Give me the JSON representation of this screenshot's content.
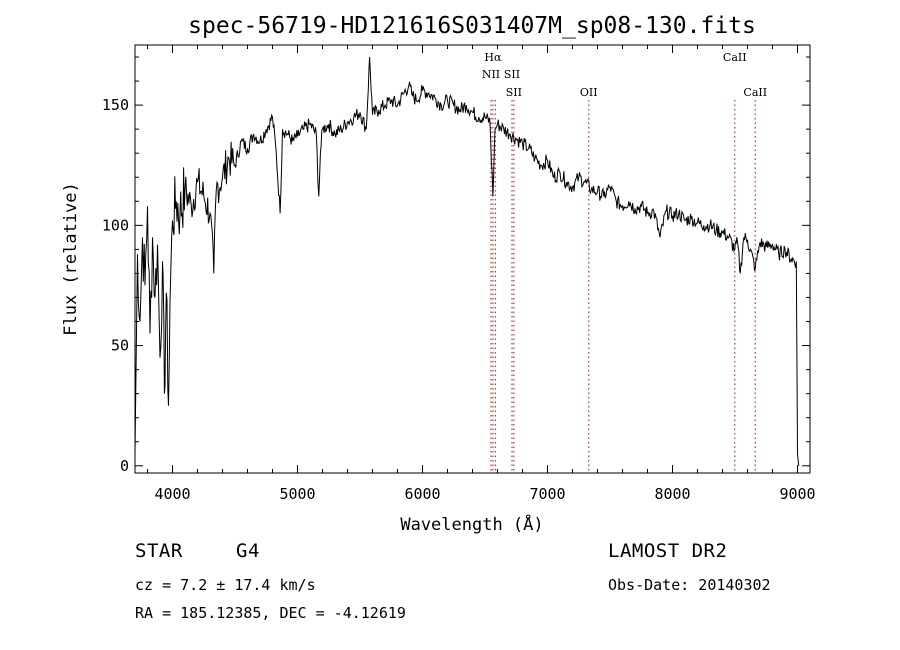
{
  "chart_data": {
    "type": "line",
    "title": "spec-56719-HD121616S031407M_sp08-130.fits",
    "xlabel": "Wavelength (Å)",
    "ylabel": "Flux (relative)",
    "xlim": [
      3700,
      9100
    ],
    "ylim": [
      -3,
      175
    ],
    "xticks": [
      4000,
      5000,
      6000,
      7000,
      8000,
      9000
    ],
    "xtick_labels": [
      "4000",
      "5000",
      "6000",
      "7000",
      "8000",
      "9000"
    ],
    "yticks": [
      0,
      50,
      100,
      150
    ],
    "ytick_labels": [
      "0",
      "50",
      "100",
      "150"
    ],
    "grid": false,
    "series": [
      {
        "name": "spectrum",
        "x": [
          3700,
          3720,
          3740,
          3760,
          3780,
          3800,
          3820,
          3840,
          3860,
          3880,
          3900,
          3920,
          3935,
          3950,
          3968,
          3980,
          4000,
          4030,
          4060,
          4100,
          4150,
          4200,
          4250,
          4300,
          4330,
          4350,
          4400,
          4450,
          4500,
          4550,
          4600,
          4650,
          4700,
          4750,
          4800,
          4830,
          4861,
          4880,
          4920,
          4960,
          5000,
          5050,
          5100,
          5150,
          5170,
          5183,
          5200,
          5250,
          5300,
          5350,
          5400,
          5450,
          5500,
          5550,
          5577,
          5600,
          5650,
          5700,
          5750,
          5800,
          5850,
          5890,
          5920,
          5950,
          6000,
          6050,
          6100,
          6150,
          6200,
          6250,
          6300,
          6350,
          6400,
          6450,
          6500,
          6540,
          6563,
          6580,
          6600,
          6650,
          6700,
          6750,
          6800,
          6850,
          6900,
          6950,
          7000,
          7050,
          7100,
          7150,
          7200,
          7250,
          7300,
          7350,
          7400,
          7450,
          7500,
          7550,
          7600,
          7650,
          7700,
          7750,
          7800,
          7850,
          7900,
          7950,
          8000,
          8050,
          8100,
          8150,
          8200,
          8250,
          8300,
          8350,
          8400,
          8450,
          8498,
          8520,
          8542,
          8570,
          8600,
          8662,
          8700,
          8750,
          8800,
          8850,
          8900,
          8950,
          8990,
          9000,
          9010
        ],
        "values": [
          5,
          88,
          60,
          95,
          75,
          108,
          55,
          95,
          70,
          92,
          45,
          85,
          30,
          72,
          25,
          68,
          102,
          110,
          105,
          115,
          108,
          118,
          112,
          105,
          80,
          115,
          120,
          128,
          125,
          135,
          132,
          138,
          135,
          140,
          145,
          130,
          105,
          140,
          138,
          135,
          137,
          140,
          142,
          138,
          112,
          130,
          140,
          142,
          138,
          140,
          143,
          145,
          147,
          140,
          170,
          146,
          148,
          150,
          152,
          150,
          155,
          158,
          154,
          152,
          156,
          155,
          153,
          150,
          152,
          150,
          148,
          150,
          147,
          145,
          145,
          143,
          112,
          140,
          142,
          140,
          138,
          136,
          134,
          132,
          128,
          125,
          127,
          120,
          122,
          118,
          116,
          120,
          118,
          115,
          114,
          112,
          116,
          110,
          108,
          110,
          107,
          108,
          105,
          106,
          95,
          106,
          104,
          105,
          102,
          103,
          101,
          100,
          100,
          98,
          97,
          95,
          90,
          93,
          80,
          95,
          94,
          82,
          93,
          91,
          92,
          88,
          90,
          86,
          85,
          5,
          0
        ]
      }
    ],
    "emission_lines": [
      {
        "x": 6563,
        "label": "Hα",
        "tier": 0
      },
      {
        "x": 6548,
        "label": "NII",
        "tier": 1
      },
      {
        "x": 6583,
        "label": "",
        "tier": -1
      },
      {
        "x": 6716,
        "label": "SII",
        "tier": 1
      },
      {
        "x": 6731,
        "label": "SII",
        "tier": 2
      },
      {
        "x": 7330,
        "label": "OII",
        "tier": 2
      },
      {
        "x": 8498,
        "label": "CaII",
        "tier": 0
      },
      {
        "x": 8662,
        "label": "CaII",
        "tier": 2
      }
    ],
    "line_color": "#000000",
    "marker_color": "#d43030"
  },
  "info": {
    "object_class": "STAR",
    "subclass": "G4",
    "survey": "LAMOST DR2",
    "redshift": "cz = 7.2 ± 17.4 km/s",
    "obs_date": "Obs-Date: 20140302",
    "coords": "RA = 185.12385, DEC =  -4.12619"
  }
}
